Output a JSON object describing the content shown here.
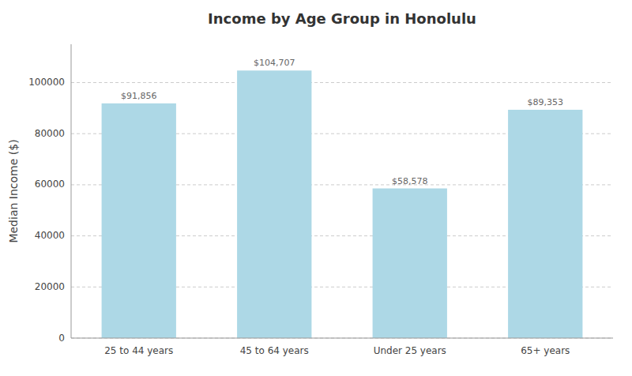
{
  "chart_data": {
    "type": "bar",
    "title": "Income by Age Group in Honolulu",
    "categories": [
      "25 to 44 years",
      "45 to 64 years",
      "Under 25 years",
      "65+ years"
    ],
    "values": [
      91856,
      104707,
      58578,
      89353
    ],
    "value_labels": [
      "$91,856",
      "$104,707",
      "$58,578",
      "$89,353"
    ],
    "data_labels": true,
    "color": "#add8e6",
    "ylabel": "Median Income ($)",
    "ylim": [
      0,
      115000
    ],
    "yticks": [
      0,
      20000,
      40000,
      60000,
      80000,
      100000
    ],
    "grid": true
  }
}
